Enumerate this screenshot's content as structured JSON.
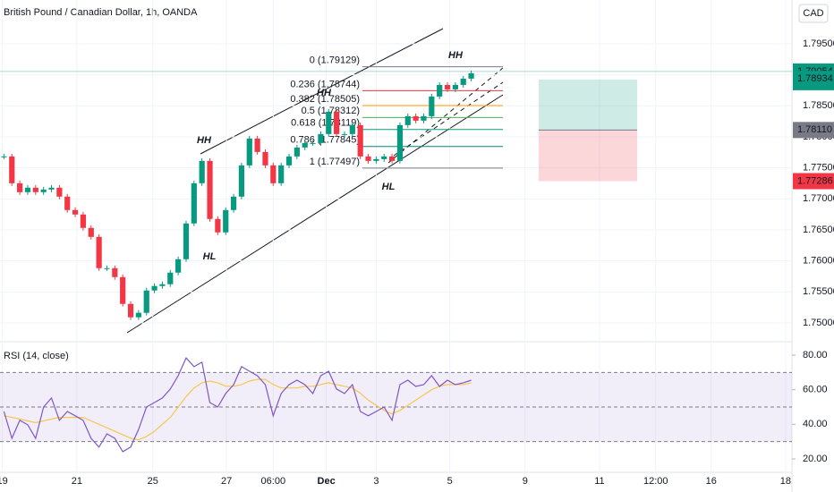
{
  "chart_data": {
    "type": "candlestick",
    "title": "British Pound / Canadian Dollar, 1h, OANDA",
    "currency": "CAD",
    "xlim": [
      0,
      100
    ],
    "xticks": [
      {
        "value": 0.3,
        "label": "19"
      },
      {
        "value": 9.7,
        "label": "21"
      },
      {
        "value": 19.3,
        "label": "25"
      },
      {
        "value": 28.6,
        "label": "27"
      },
      {
        "value": 34.5,
        "label": "06:00"
      },
      {
        "value": 41.2,
        "label": "Dec"
      },
      {
        "value": 47.5,
        "label": "3"
      },
      {
        "value": 56.8,
        "label": "5"
      },
      {
        "value": 66.3,
        "label": "9"
      },
      {
        "value": 75.7,
        "label": "11"
      },
      {
        "value": 82.8,
        "label": "12:00"
      },
      {
        "value": 89.8,
        "label": "16"
      },
      {
        "value": 99.2,
        "label": "18"
      }
    ],
    "ylim": [
      1.74726,
      1.80206
    ],
    "yticks": [
      {
        "value": 1.795,
        "label": "1.79500"
      },
      {
        "value": 1.79,
        "label": "1.79000"
      },
      {
        "value": 1.785,
        "label": "1.78500"
      },
      {
        "value": 1.78,
        "label": "1.78000"
      },
      {
        "value": 1.775,
        "label": "1.77500"
      },
      {
        "value": 1.77,
        "label": "1.77000"
      },
      {
        "value": 1.765,
        "label": "1.76500"
      },
      {
        "value": 1.76,
        "label": "1.76000"
      },
      {
        "value": 1.755,
        "label": "1.75500"
      },
      {
        "value": 1.75,
        "label": "1.75000"
      }
    ],
    "up_color": "#089981",
    "down_color": "#f23645",
    "close": [
      1.77684,
      1.77252,
      1.77108,
      1.7718,
      1.77108,
      1.77151,
      1.7718,
      1.77036,
      1.7682,
      1.76748,
      1.76532,
      1.76387,
      1.75883,
      1.75883,
      1.75739,
      1.75307,
      1.75091,
      1.75163,
      1.75523,
      1.75595,
      1.75624,
      1.75811,
      1.76027,
      1.76604,
      1.77252,
      1.77612,
      1.76676,
      1.7646,
      1.7682,
      1.77036,
      1.7754,
      1.77973,
      1.77756,
      1.7754,
      1.77252,
      1.7754,
      1.77684,
      1.77828,
      1.779,
      1.779,
      1.78045,
      1.78405,
      1.78045,
      1.78045,
      1.78189,
      1.77684,
      1.77612,
      1.77641,
      1.77684,
      1.77612,
      1.78189,
      1.78333,
      1.78261,
      1.78333,
      1.7865,
      1.78837,
      1.78765,
      1.78837,
      1.78938,
      1.79024
    ],
    "last_price": {
      "value": 1.79054,
      "label": "1.79054"
    },
    "countdown": "28:17",
    "bid_price": {
      "value": 1.78934,
      "label": "1.78934"
    },
    "position": {
      "target": {
        "value": 1.78924
      },
      "entry": {
        "value": 1.7811,
        "label": "1.78110"
      },
      "stop": {
        "value": 1.77286,
        "label": "1.77286"
      }
    },
    "fib_levels": [
      {
        "value": 1.79129,
        "label": "0 (1.79129)",
        "color": "#787b86"
      },
      {
        "value": 1.78744,
        "label": "0.236 (1.78744)",
        "color": "#f23645"
      },
      {
        "value": 1.78505,
        "label": "0.382 (1.78505)",
        "color": "#ff9800"
      },
      {
        "value": 1.78312,
        "label": "0.5 (1.78312)",
        "color": "#4caf50"
      },
      {
        "value": 1.78119,
        "label": "0.618 (1.78119)",
        "color": "#089981"
      },
      {
        "value": 1.77845,
        "label": "0.786 (1.77845)",
        "color": "#00897b"
      },
      {
        "value": 1.77497,
        "label": "1 (1.77497)",
        "color": "#787b86"
      }
    ],
    "annotations": [
      "HH",
      "HL",
      "HH",
      "HL",
      "HH"
    ],
    "rsi": {
      "label": "RSI (14, close)",
      "ylim": [
        11.2,
        86.2
      ],
      "yticks": [
        {
          "value": 80,
          "label": "80.00"
        },
        {
          "value": 60,
          "label": "60.00"
        },
        {
          "value": 40,
          "label": "40.00"
        },
        {
          "value": 20,
          "label": "20.00"
        }
      ],
      "bands": [
        70,
        50,
        30
      ],
      "color": "#7e57c2",
      "ma_color": "#f7c64f",
      "values": [
        47.4,
        31.9,
        42.3,
        39.7,
        31.9,
        50.0,
        55.2,
        42.3,
        47.4,
        44.9,
        42.3,
        31.9,
        26.8,
        34.5,
        31.9,
        24.2,
        26.8,
        37.1,
        50.0,
        52.6,
        55.2,
        60.4,
        68.1,
        78.4,
        73.3,
        75.9,
        52.6,
        50.0,
        57.8,
        62.9,
        73.3,
        70.7,
        68.1,
        62.9,
        44.9,
        57.8,
        62.9,
        65.5,
        62.9,
        57.8,
        68.1,
        70.7,
        60.4,
        57.8,
        62.9,
        47.4,
        44.9,
        47.4,
        50.0,
        42.3,
        62.9,
        65.5,
        61.9,
        62.9,
        68.1,
        61.9,
        65.5,
        62.9,
        64.0,
        65.5
      ],
      "ma_values": [
        45,
        44,
        43,
        42,
        41,
        42,
        43,
        44,
        44,
        44,
        44,
        42,
        40,
        38,
        36,
        34,
        32,
        31,
        33,
        36,
        40,
        44,
        50,
        56,
        61,
        64,
        65,
        64,
        62,
        62,
        63,
        65,
        66,
        66,
        63,
        61,
        61,
        61,
        62,
        62,
        63,
        64,
        63,
        62,
        61,
        58,
        54,
        51,
        48,
        46,
        48,
        51,
        54,
        57,
        60,
        62,
        63,
        63,
        63,
        64
      ]
    }
  }
}
